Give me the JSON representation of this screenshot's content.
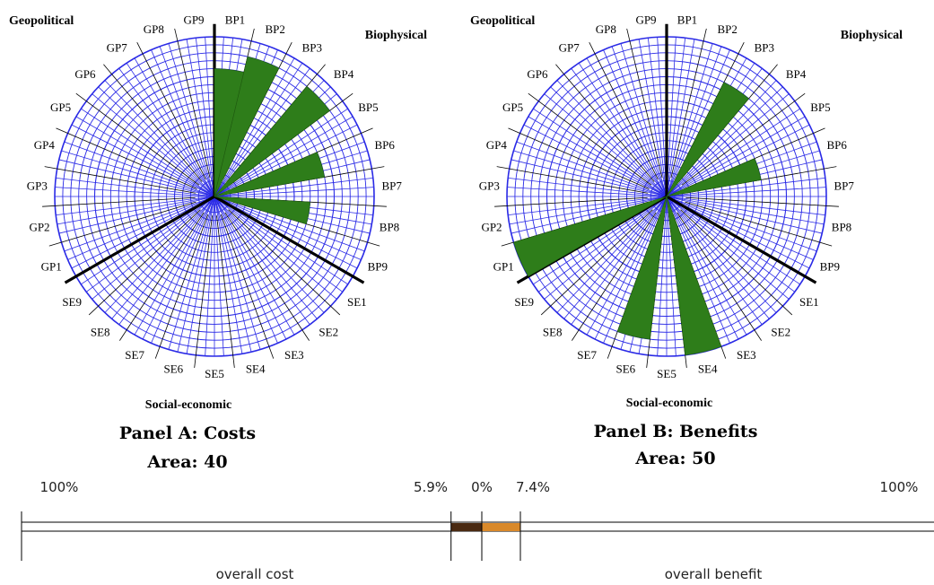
{
  "chart_data": [
    {
      "type": "radial-bar",
      "title": "Panel A: Costs",
      "subtitle": "Area: 40",
      "group_labels": {
        "top_left": "Geopolitical",
        "top_right": "Biophysical",
        "bottom": "Social-economic"
      },
      "sectors": [
        "BP1",
        "BP2",
        "BP3",
        "BP4",
        "BP5",
        "BP6",
        "BP7",
        "BP8",
        "BP9",
        "SE1",
        "SE2",
        "SE3",
        "SE4",
        "SE5",
        "SE6",
        "SE7",
        "SE8",
        "SE9",
        "GP1",
        "GP2",
        "GP3",
        "GP4",
        "GP5",
        "GP6",
        "GP7",
        "GP8",
        "GP9"
      ],
      "values": [
        8,
        9,
        0,
        9,
        0,
        7,
        0,
        6,
        0,
        0,
        0,
        0,
        0,
        0,
        0,
        0,
        0,
        0,
        0,
        0,
        0,
        0,
        0,
        0,
        0,
        0,
        0
      ],
      "rlim": [
        0,
        10
      ],
      "bar_color": "#2e7d1a"
    },
    {
      "type": "radial-bar",
      "title": "Panel B: Benefits",
      "subtitle": "Area: 50",
      "group_labels": {
        "top_left": "Geopolitical",
        "top_right": "Biophysical",
        "bottom": "Social-economic"
      },
      "sectors": [
        "BP1",
        "BP2",
        "BP3",
        "BP4",
        "BP5",
        "BP6",
        "BP7",
        "BP8",
        "BP9",
        "SE1",
        "SE2",
        "SE3",
        "SE4",
        "SE5",
        "SE6",
        "SE7",
        "SE8",
        "SE9",
        "GP1",
        "GP2",
        "GP3",
        "GP4",
        "GP5",
        "GP6",
        "GP7",
        "GP8",
        "GP9"
      ],
      "values": [
        0,
        0,
        8,
        0,
        0,
        6,
        0,
        0,
        0,
        0,
        0,
        0,
        10,
        0,
        9,
        0,
        0,
        0,
        10,
        0,
        0,
        0,
        0,
        0,
        0,
        0,
        0
      ],
      "rlim": [
        0,
        10
      ],
      "bar_color": "#2e7d1a"
    },
    {
      "type": "bar",
      "orientation": "horizontal",
      "labels_top": [
        "100%",
        "5.9%",
        "0%",
        "7.4%",
        "100%"
      ],
      "segments": [
        {
          "name": "overall cost",
          "value": 5.9,
          "color": "#4a2a12"
        },
        {
          "name": "overall benefit",
          "value": 7.4,
          "color": "#d9892a"
        }
      ],
      "xlim": [
        -100,
        100
      ],
      "labels_bottom": [
        "overall cost",
        "overall benefit"
      ]
    }
  ],
  "colors": {
    "grid": "#2a2ae6",
    "bar": "#2e7d1a",
    "axis": "#000000"
  }
}
